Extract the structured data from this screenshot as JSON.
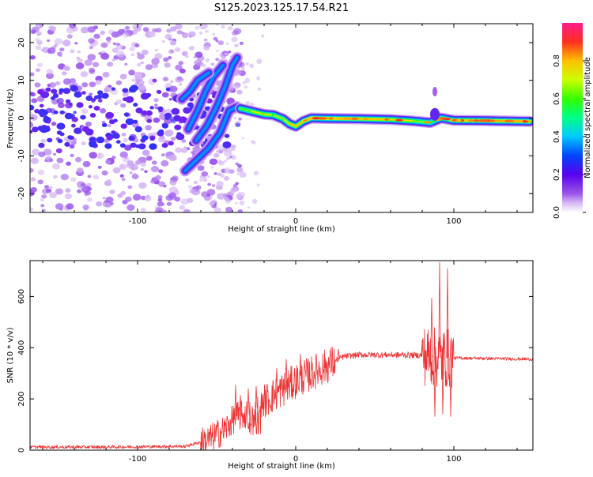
{
  "title": "S125.2023.125.17.54.R21",
  "chart_data": [
    {
      "type": "heatmap",
      "xlabel": "Height of straight line (km)",
      "ylabel": "Frequency (Hz)",
      "xlim": [
        -168,
        150
      ],
      "ylim": [
        -25,
        25
      ],
      "xticks": [
        -100,
        0,
        100
      ],
      "yticks": [
        -20,
        -10,
        0,
        10,
        20
      ],
      "colorbar": {
        "label": "Normalized spectral amplitude",
        "range": [
          0,
          1
        ],
        "ticks": [
          0.0,
          0.2,
          0.4,
          0.6,
          0.8
        ]
      },
      "ridge": [
        {
          "x": -35,
          "f": 2.5,
          "a": 0.55
        },
        {
          "x": -28,
          "f": 1.8,
          "a": 0.7
        },
        {
          "x": -20,
          "f": 1.0,
          "a": 0.75
        },
        {
          "x": -14,
          "f": 0.8,
          "a": 0.7
        },
        {
          "x": -8,
          "f": -0.2,
          "a": 0.65
        },
        {
          "x": -4,
          "f": -1.5,
          "a": 0.75
        },
        {
          "x": 0,
          "f": -2.2,
          "a": 0.85
        },
        {
          "x": 5,
          "f": -0.8,
          "a": 0.75
        },
        {
          "x": 10,
          "f": 0.0,
          "a": 0.95
        },
        {
          "x": 20,
          "f": -0.1,
          "a": 0.85
        },
        {
          "x": 40,
          "f": -0.2,
          "a": 0.8
        },
        {
          "x": 60,
          "f": -0.4,
          "a": 0.8
        },
        {
          "x": 75,
          "f": -0.8,
          "a": 0.7
        },
        {
          "x": 85,
          "f": -1.2,
          "a": 0.6
        },
        {
          "x": 92,
          "f": 0.0,
          "a": 0.55
        },
        {
          "x": 100,
          "f": -0.6,
          "a": 0.8
        },
        {
          "x": 120,
          "f": -0.7,
          "a": 0.8
        },
        {
          "x": 148,
          "f": -0.9,
          "a": 0.85
        }
      ],
      "branches": [
        [
          [
            -70,
            -14
          ],
          [
            -65,
            -12
          ],
          [
            -55,
            -8
          ],
          [
            -48,
            -4
          ],
          [
            -42,
            2
          ],
          [
            -37,
            3
          ]
        ],
        [
          [
            -63,
            -6
          ],
          [
            -56,
            -2
          ],
          [
            -50,
            3
          ],
          [
            -45,
            8
          ],
          [
            -40,
            14
          ],
          [
            -37,
            16
          ]
        ],
        [
          [
            -68,
            -3
          ],
          [
            -62,
            2
          ],
          [
            -57,
            7
          ],
          [
            -52,
            11
          ],
          [
            -46,
            14
          ]
        ],
        [
          [
            -72,
            5
          ],
          [
            -67,
            7
          ],
          [
            -62,
            10
          ],
          [
            -55,
            12
          ]
        ]
      ]
    },
    {
      "type": "line",
      "xlabel": "Height of straight line (km)",
      "ylabel": "SNR (10 * v/v)",
      "xlim": [
        -168,
        150
      ],
      "ylim": [
        0,
        740
      ],
      "xticks": [
        -100,
        0,
        100
      ],
      "yticks": [
        0,
        200,
        400,
        600
      ],
      "color": "#ee3333",
      "envelope": [
        {
          "x": -168,
          "y": 12
        },
        {
          "x": -120,
          "y": 12
        },
        {
          "x": -70,
          "y": 15
        },
        {
          "x": -55,
          "y": 40
        },
        {
          "x": -45,
          "y": 80
        },
        {
          "x": -38,
          "y": 130
        },
        {
          "x": -30,
          "y": 140
        },
        {
          "x": -20,
          "y": 190
        },
        {
          "x": -10,
          "y": 230
        },
        {
          "x": 0,
          "y": 270
        },
        {
          "x": 10,
          "y": 300
        },
        {
          "x": 20,
          "y": 330
        },
        {
          "x": 30,
          "y": 365
        },
        {
          "x": 40,
          "y": 372
        },
        {
          "x": 60,
          "y": 372
        },
        {
          "x": 80,
          "y": 370
        },
        {
          "x": 90,
          "y": 360
        },
        {
          "x": 100,
          "y": 360
        },
        {
          "x": 150,
          "y": 355
        }
      ],
      "spikes": [
        {
          "x": -38,
          "y": 255
        },
        {
          "x": -35,
          "y": 215
        },
        {
          "x": -30,
          "y": 240
        },
        {
          "x": -25,
          "y": 250
        },
        {
          "x": -12,
          "y": 320
        },
        {
          "x": -6,
          "y": 355
        },
        {
          "x": 3,
          "y": 375
        },
        {
          "x": 27,
          "y": 395
        },
        {
          "x": 80,
          "y": 420
        },
        {
          "x": 86,
          "y": 595
        },
        {
          "x": 88,
          "y": 130
        },
        {
          "x": 91,
          "y": 735
        },
        {
          "x": 93,
          "y": 140
        },
        {
          "x": 96,
          "y": 710
        },
        {
          "x": 98,
          "y": 130
        }
      ]
    }
  ]
}
